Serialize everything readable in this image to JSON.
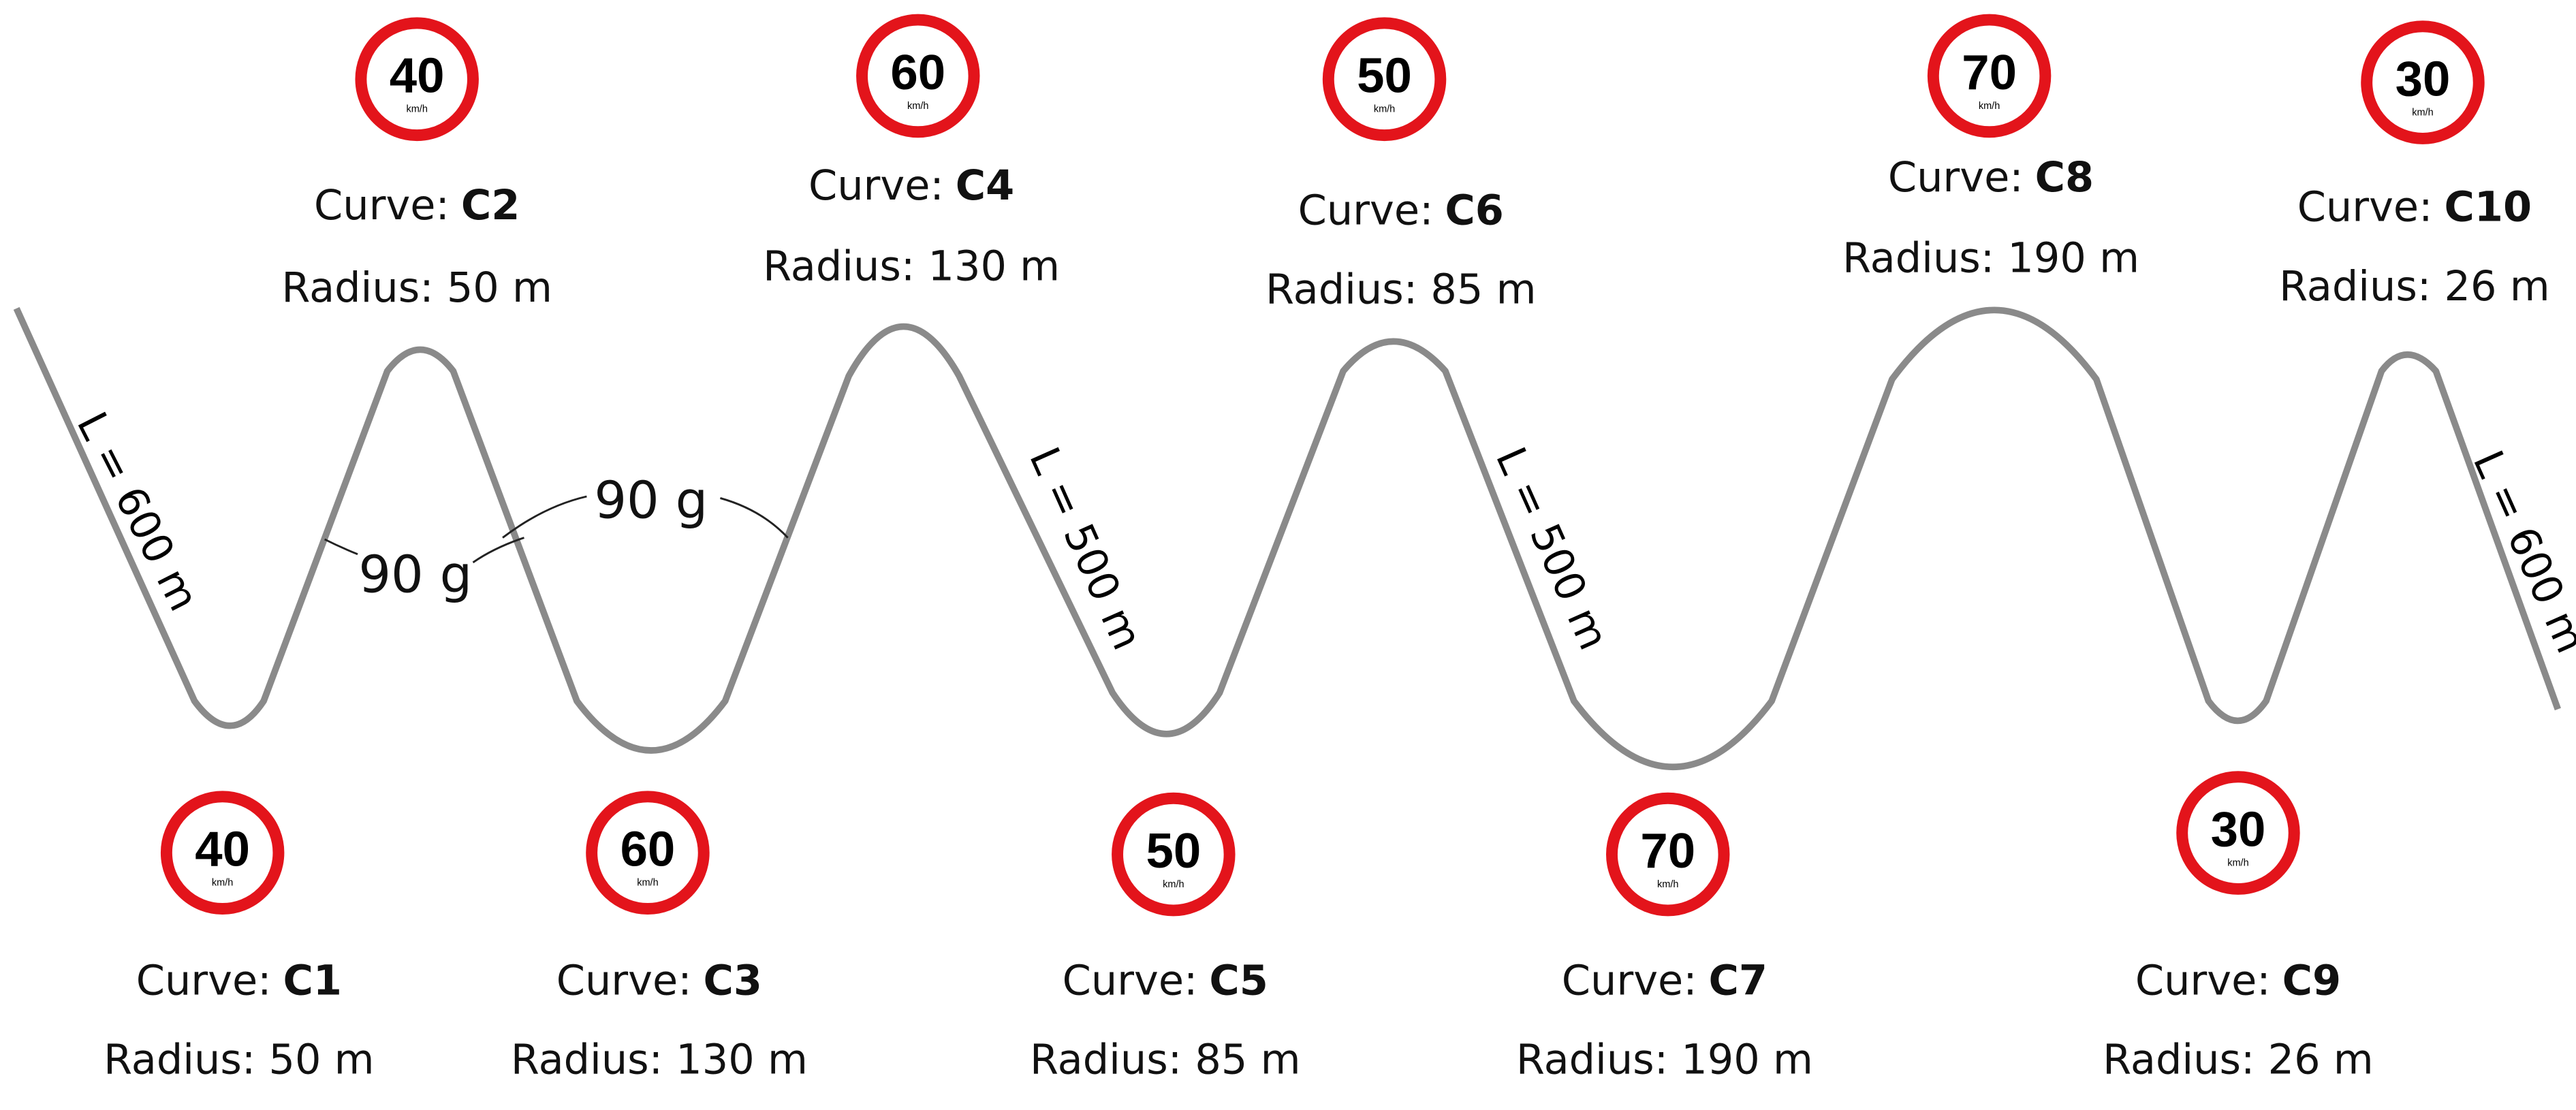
{
  "curves": [
    {
      "label": "Curve:",
      "id": "C1",
      "radius": "Radius: 50 m",
      "speed": "40",
      "unit": "km/h"
    },
    {
      "label": "Curve:",
      "id": "C2",
      "radius": "Radius: 50 m",
      "speed": "40",
      "unit": "km/h"
    },
    {
      "label": "Curve:",
      "id": "C3",
      "radius": "Radius: 130 m",
      "speed": "60",
      "unit": "km/h"
    },
    {
      "label": "Curve:",
      "id": "C4",
      "radius": "Radius: 130 m",
      "speed": "60",
      "unit": "km/h"
    },
    {
      "label": "Curve:",
      "id": "C5",
      "radius": "Radius: 85 m",
      "speed": "50",
      "unit": "km/h"
    },
    {
      "label": "Curve:",
      "id": "C6",
      "radius": "Radius: 85 m",
      "speed": "50",
      "unit": "km/h"
    },
    {
      "label": "Curve:",
      "id": "C7",
      "radius": "Radius: 190 m",
      "speed": "70",
      "unit": "km/h"
    },
    {
      "label": "Curve:",
      "id": "C8",
      "radius": "Radius: 190 m",
      "speed": "70",
      "unit": "km/h"
    },
    {
      "label": "Curve:",
      "id": "C9",
      "radius": "Radius: 26 m",
      "speed": "30",
      "unit": "km/h"
    },
    {
      "label": "Curve:",
      "id": "C10",
      "radius": "Radius: 26 m",
      "speed": "30",
      "unit": "km/h"
    }
  ],
  "segments": [
    "L = 600 m",
    "L = 500 m",
    "L = 500 m",
    "L = 600 m"
  ],
  "angles": [
    "90 g",
    "90 g"
  ]
}
